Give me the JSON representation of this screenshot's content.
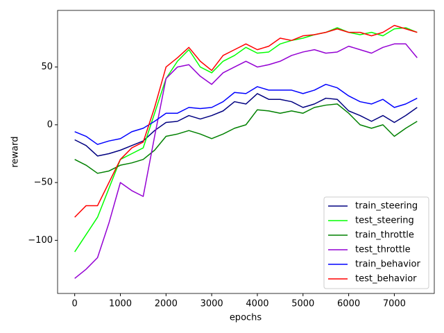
{
  "chart_data": {
    "type": "line",
    "xlabel": "epochs",
    "ylabel": "reward",
    "x": [
      0,
      250,
      500,
      750,
      1000,
      1250,
      1500,
      1750,
      2000,
      2250,
      2500,
      2750,
      3000,
      3250,
      3500,
      3750,
      4000,
      4250,
      4500,
      4750,
      5000,
      5250,
      5500,
      5750,
      6000,
      6250,
      6500,
      6750,
      7000,
      7250,
      7500
    ],
    "xlim": [
      -375,
      7875
    ],
    "xticks": [
      0,
      1000,
      2000,
      3000,
      4000,
      5000,
      6000,
      7000
    ],
    "ylim": [
      -146,
      99
    ],
    "yticks": [
      {
        "value": -100,
        "label": "−100"
      },
      {
        "value": -50,
        "label": "−50"
      },
      0,
      50
    ],
    "legend": "lower right",
    "series": [
      {
        "name": "train_steering",
        "color": "#000080",
        "values": [
          -13,
          -18,
          -27,
          -25,
          -22,
          -18,
          -14,
          -5,
          2,
          3,
          8,
          5,
          8,
          12,
          20,
          18,
          27,
          22,
          22,
          20,
          15,
          18,
          23,
          22,
          12,
          8,
          3,
          8,
          2,
          8,
          15
        ]
      },
      {
        "name": "test_steering",
        "color": "#00ff00",
        "values": [
          -110,
          -95,
          -80,
          -55,
          -30,
          -25,
          -20,
          10,
          40,
          55,
          65,
          50,
          45,
          55,
          60,
          67,
          62,
          63,
          70,
          73,
          75,
          78,
          80,
          84,
          80,
          78,
          80,
          77,
          83,
          84,
          80
        ]
      },
      {
        "name": "train_throttle",
        "color": "#008000",
        "values": [
          -30,
          -35,
          -42,
          -40,
          -35,
          -33,
          -30,
          -22,
          -10,
          -8,
          -5,
          -8,
          -12,
          -8,
          -3,
          0,
          13,
          12,
          10,
          12,
          10,
          15,
          17,
          18,
          10,
          0,
          -3,
          0,
          -10,
          -3,
          3
        ]
      },
      {
        "name": "test_throttle",
        "color": "#9400d3",
        "values": [
          -133,
          -125,
          -115,
          -85,
          -50,
          -57,
          -62,
          -10,
          40,
          50,
          52,
          42,
          35,
          45,
          50,
          55,
          50,
          52,
          55,
          60,
          63,
          65,
          62,
          63,
          68,
          65,
          62,
          67,
          70,
          70,
          58
        ]
      },
      {
        "name": "train_behavior",
        "color": "#0000ff",
        "values": [
          -6,
          -10,
          -17,
          -14,
          -12,
          -6,
          -3,
          3,
          10,
          10,
          15,
          14,
          15,
          20,
          28,
          27,
          33,
          30,
          30,
          30,
          27,
          30,
          35,
          32,
          25,
          20,
          18,
          22,
          15,
          18,
          23
        ]
      },
      {
        "name": "test_behavior",
        "color": "#ff0000",
        "values": [
          -80,
          -70,
          -70,
          -50,
          -30,
          -20,
          -15,
          15,
          50,
          58,
          67,
          55,
          47,
          60,
          65,
          70,
          65,
          68,
          75,
          73,
          77,
          78,
          80,
          83,
          80,
          80,
          77,
          80,
          86,
          83,
          80
        ]
      }
    ]
  }
}
